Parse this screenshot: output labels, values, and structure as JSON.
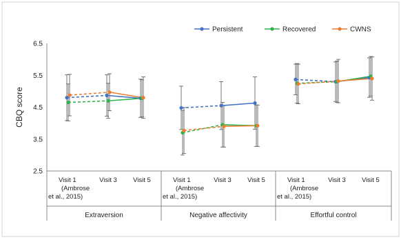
{
  "chart_data": {
    "type": "line",
    "ylabel": "CBQ score",
    "yticks": [
      "2.5",
      "3.5",
      "4.5",
      "5.5",
      "6.5"
    ],
    "ylim": [
      2.5,
      6.5
    ],
    "grid": false,
    "legend_position": "top-right",
    "groups": [
      {
        "label": "Extraversion",
        "x_labels": [
          [
            "Visit 1",
            "(Ambrose",
            "et al., 2015)"
          ],
          [
            "Visit 3"
          ],
          [
            "Visit 5"
          ]
        ]
      },
      {
        "label": "Negative affectivity",
        "x_labels": [
          [
            "Visit 1",
            "(Ambrose",
            "et al., 2015)"
          ],
          [
            "Visit 3"
          ],
          [
            "Visit 5"
          ]
        ]
      },
      {
        "label": "Effortful control",
        "x_labels": [
          [
            "Visit 1",
            "(Ambrose",
            "et al., 2015)"
          ],
          [
            "Visit 3"
          ],
          [
            "Visit 5"
          ]
        ]
      }
    ],
    "series": [
      {
        "name": "Persistent",
        "color": "#4472C4",
        "values": [
          [
            4.8,
            4.87,
            4.78
          ],
          [
            4.48,
            4.55,
            4.63
          ],
          [
            5.37,
            5.3,
            5.43
          ]
        ],
        "errors": [
          [
            0.72,
            0.65,
            0.6
          ],
          [
            0.68,
            0.75,
            0.82
          ],
          [
            0.48,
            0.62,
            0.62
          ]
        ]
      },
      {
        "name": "Recovered",
        "color": "#2DB34A",
        "values": [
          [
            4.65,
            4.7,
            4.78
          ],
          [
            3.7,
            3.95,
            3.92
          ],
          [
            5.25,
            5.3,
            5.47
          ]
        ],
        "errors": [
          [
            0.58,
            0.55,
            0.58
          ],
          [
            0.7,
            0.7,
            0.65
          ],
          [
            0.62,
            0.65,
            0.62
          ]
        ]
      },
      {
        "name": "CWNS",
        "color": "#ED7D31",
        "values": [
          [
            4.88,
            4.97,
            4.8
          ],
          [
            3.77,
            3.9,
            3.92
          ],
          [
            5.23,
            5.32,
            5.4
          ]
        ],
        "errors": [
          [
            0.65,
            0.58,
            0.65
          ],
          [
            0.72,
            0.65,
            0.65
          ],
          [
            0.62,
            0.68,
            0.68
          ]
        ]
      }
    ]
  }
}
